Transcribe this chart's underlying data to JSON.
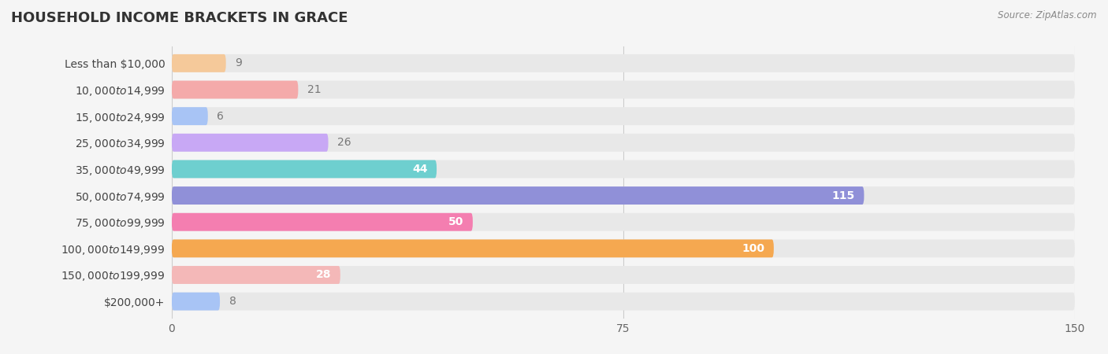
{
  "title": "HOUSEHOLD INCOME BRACKETS IN GRACE",
  "source": "Source: ZipAtlas.com",
  "categories": [
    "Less than $10,000",
    "$10,000 to $14,999",
    "$15,000 to $24,999",
    "$25,000 to $34,999",
    "$35,000 to $49,999",
    "$50,000 to $74,999",
    "$75,000 to $99,999",
    "$100,000 to $149,999",
    "$150,000 to $199,999",
    "$200,000+"
  ],
  "values": [
    9,
    21,
    6,
    26,
    44,
    115,
    50,
    100,
    28,
    8
  ],
  "bar_colors": [
    "#F5C99A",
    "#F4AAAA",
    "#A8C4F5",
    "#C8A8F5",
    "#6ECFCF",
    "#9090D8",
    "#F47EB0",
    "#F5A850",
    "#F4B8B8",
    "#A8C4F5"
  ],
  "background_color": "#f5f5f5",
  "bar_background_color": "#e8e8e8",
  "xlim": [
    0,
    150
  ],
  "xticks": [
    0,
    75,
    150
  ],
  "value_label_color_inside": "#ffffff",
  "value_label_color_outside": "#777777",
  "title_fontsize": 13,
  "axis_fontsize": 10,
  "label_fontsize": 10,
  "value_fontsize": 10,
  "bar_height": 0.68
}
